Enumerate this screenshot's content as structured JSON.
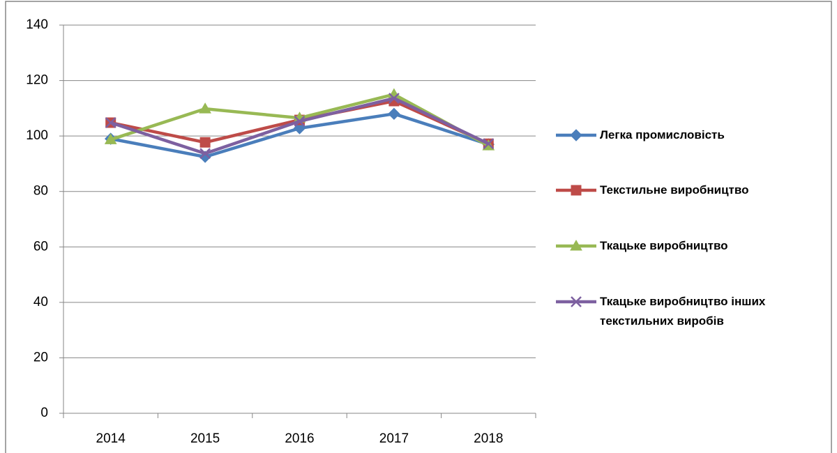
{
  "chart_data": {
    "type": "line",
    "categories": [
      "2014",
      "2015",
      "2016",
      "2017",
      "2018"
    ],
    "series": [
      {
        "name": "Легка промисловість",
        "color": "#4a7ebb",
        "marker": "diamond",
        "values": [
          99,
          92.5,
          102.8,
          108,
          97
        ]
      },
      {
        "name": "Текстильне виробництво",
        "color": "#be4b48",
        "marker": "square",
        "values": [
          104.8,
          97.7,
          105.8,
          112.6,
          97.2
        ]
      },
      {
        "name": "Ткацьке виробництво",
        "color": "#98b954",
        "marker": "triangle",
        "values": [
          98.7,
          109.8,
          106.5,
          115,
          96.5
        ]
      },
      {
        "name": "Ткацьке виробництво інших текстильних виробів",
        "color": "#7d60a0",
        "marker": "x",
        "values": [
          104.8,
          93.7,
          105.3,
          113.6,
          97.2
        ]
      }
    ],
    "ylim": [
      0,
      140
    ],
    "yticks": [
      0,
      20,
      40,
      60,
      80,
      100,
      120,
      140
    ],
    "grid": true,
    "legend": "right"
  }
}
